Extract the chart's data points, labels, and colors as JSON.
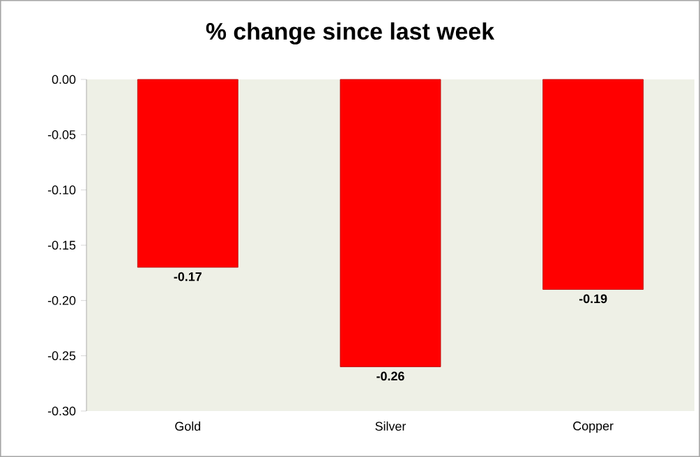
{
  "chart_data": {
    "type": "bar",
    "title": "% change since last week",
    "categories": [
      "Gold",
      "Silver",
      "Copper"
    ],
    "values": [
      -0.17,
      -0.26,
      -0.19
    ],
    "value_labels": [
      "-0.17",
      "-0.26",
      "-0.19"
    ],
    "color": "#ff0000",
    "ylim": [
      -0.3,
      0
    ],
    "yticks": [
      {
        "value": 0,
        "label": "0.00"
      },
      {
        "value": -0.05,
        "label": "-0.05"
      },
      {
        "value": -0.1,
        "label": "-0.10"
      },
      {
        "value": -0.15,
        "label": "-0.15"
      },
      {
        "value": -0.2,
        "label": "-0.20"
      },
      {
        "value": -0.25,
        "label": "-0.25"
      },
      {
        "value": -0.3,
        "label": "-0.30"
      }
    ],
    "grid": false
  }
}
